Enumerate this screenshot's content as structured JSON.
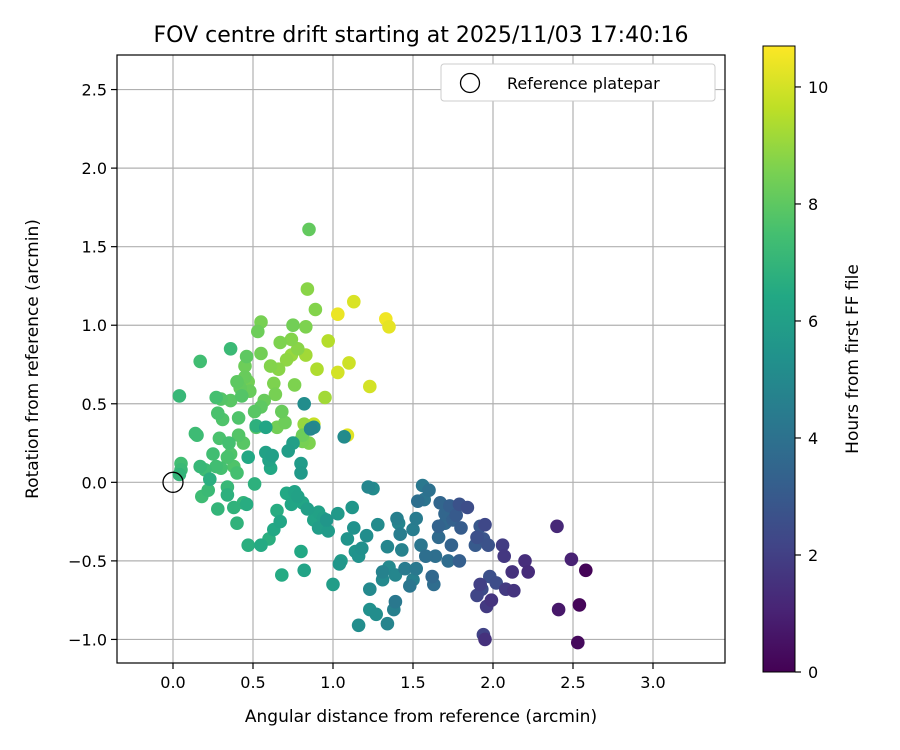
{
  "chart_data": {
    "type": "scatter",
    "title": "FOV centre drift starting at 2025/11/03 17:40:16",
    "xlabel": "Angular distance from reference (arcmin)",
    "ylabel": "Rotation from reference (arcmin)",
    "xlim": [
      -0.35,
      3.45
    ],
    "ylim": [
      -1.15,
      2.72
    ],
    "xticks": [
      0.0,
      0.5,
      1.0,
      1.5,
      2.0,
      2.5,
      3.0
    ],
    "yticks": [
      -1.0,
      -0.5,
      0.0,
      0.5,
      1.0,
      1.5,
      2.0,
      2.5
    ],
    "grid": true,
    "legend": {
      "location": "top-right",
      "entries": [
        "Reference platepar"
      ]
    },
    "reference_point": {
      "x": 0.0,
      "y": 0.0
    },
    "colorbar": {
      "label": "Hours from first FF file",
      "min": 0,
      "max": 10.7,
      "ticks": [
        0,
        2,
        4,
        6,
        8,
        10
      ],
      "colormap": "viridis"
    },
    "series": [
      {
        "points": [
          [
            2.58,
            -0.56,
            0.1
          ],
          [
            2.54,
            -0.78,
            0.15
          ],
          [
            2.53,
            -1.02,
            0.25
          ],
          [
            2.41,
            -0.81,
            0.7
          ],
          [
            2.49,
            -0.49,
            1.0
          ],
          [
            2.4,
            -0.28,
            1.2
          ],
          [
            2.22,
            -0.57,
            1.3
          ],
          [
            2.2,
            -0.5,
            1.4
          ],
          [
            2.12,
            -0.57,
            1.5
          ],
          [
            2.13,
            -0.69,
            1.6
          ],
          [
            2.08,
            -0.68,
            1.8
          ],
          [
            2.07,
            -0.47,
            1.7
          ],
          [
            2.06,
            -0.4,
            1.9
          ],
          [
            1.99,
            -0.75,
            1.6
          ],
          [
            1.96,
            -0.79,
            1.8
          ],
          [
            1.95,
            -1.0,
            1.5
          ],
          [
            1.94,
            -0.97,
            2.1
          ],
          [
            1.92,
            -0.65,
            2.0
          ],
          [
            1.9,
            -0.72,
            2.2
          ],
          [
            1.93,
            -0.68,
            2.4
          ],
          [
            1.95,
            -0.27,
            2.3
          ],
          [
            1.98,
            -0.6,
            2.6
          ],
          [
            2.02,
            -0.64,
            2.5
          ],
          [
            1.97,
            -0.4,
            2.7
          ],
          [
            1.94,
            -0.36,
            2.8
          ],
          [
            1.9,
            -0.35,
            2.6
          ],
          [
            1.92,
            -0.28,
            2.9
          ],
          [
            1.89,
            -0.4,
            3.0
          ],
          [
            1.84,
            -0.16,
            2.5
          ],
          [
            1.79,
            -0.14,
            2.7
          ],
          [
            1.8,
            -0.29,
            3.1
          ],
          [
            1.79,
            -0.5,
            3.2
          ],
          [
            1.77,
            -0.21,
            3.0
          ],
          [
            1.75,
            -0.24,
            3.3
          ],
          [
            1.74,
            -0.4,
            3.4
          ],
          [
            1.73,
            -0.15,
            3.2
          ],
          [
            1.7,
            -0.2,
            3.5
          ],
          [
            1.7,
            -0.26,
            3.6
          ],
          [
            1.72,
            -0.5,
            3.8
          ],
          [
            1.66,
            -0.28,
            3.4
          ],
          [
            1.67,
            -0.13,
            3.5
          ],
          [
            1.66,
            -0.35,
            3.7
          ],
          [
            1.64,
            -0.47,
            3.9
          ],
          [
            1.62,
            -0.6,
            3.6
          ],
          [
            1.63,
            -0.65,
            3.8
          ],
          [
            1.6,
            -0.05,
            4.0
          ],
          [
            1.58,
            -0.47,
            3.9
          ],
          [
            1.57,
            -0.11,
            4.1
          ],
          [
            1.55,
            -0.4,
            4.2
          ],
          [
            1.56,
            -0.02,
            4.3
          ],
          [
            1.53,
            -0.12,
            3.9
          ],
          [
            1.52,
            -0.23,
            4.4
          ],
          [
            1.5,
            -0.3,
            4.5
          ],
          [
            1.52,
            -0.55,
            4.3
          ],
          [
            1.5,
            -0.62,
            4.6
          ],
          [
            1.48,
            -0.66,
            4.2
          ],
          [
            1.45,
            -0.55,
            4.4
          ],
          [
            1.42,
            -0.33,
            4.5
          ],
          [
            1.43,
            -0.43,
            4.7
          ],
          [
            1.41,
            -0.26,
            4.8
          ],
          [
            1.4,
            -0.23,
            4.6
          ],
          [
            1.39,
            -0.59,
            4.9
          ],
          [
            1.39,
            -0.76,
            4.3
          ],
          [
            1.38,
            -0.81,
            4.6
          ],
          [
            1.35,
            -0.54,
            5.0
          ],
          [
            1.34,
            -0.41,
            4.9
          ],
          [
            1.34,
            -0.9,
            4.8
          ],
          [
            1.31,
            -0.57,
            4.7
          ],
          [
            1.31,
            -0.62,
            5.0
          ],
          [
            1.28,
            -0.27,
            5.1
          ],
          [
            1.27,
            -0.84,
            5.2
          ],
          [
            1.25,
            -0.04,
            5.1
          ],
          [
            1.23,
            -0.68,
            5.0
          ],
          [
            1.23,
            -0.81,
            5.3
          ],
          [
            1.22,
            -0.03,
            4.9
          ],
          [
            1.21,
            -0.34,
            5.2
          ],
          [
            1.18,
            -0.42,
            5.3
          ],
          [
            1.16,
            -0.47,
            5.4
          ],
          [
            1.14,
            -0.44,
            5.5
          ],
          [
            1.16,
            -0.91,
            5.2
          ],
          [
            1.13,
            -0.29,
            5.4
          ],
          [
            1.12,
            -0.16,
            5.6
          ],
          [
            1.09,
            -0.36,
            5.5
          ],
          [
            1.05,
            -0.5,
            5.8
          ],
          [
            1.04,
            -0.52,
            5.6
          ],
          [
            1.03,
            -0.2,
            5.7
          ],
          [
            1.0,
            -0.65,
            5.9
          ],
          [
            0.97,
            -0.31,
            5.8
          ],
          [
            0.96,
            -0.24,
            5.6
          ],
          [
            0.94,
            -0.23,
            6.0
          ],
          [
            0.91,
            -0.29,
            5.9
          ],
          [
            0.91,
            -0.19,
            6.1
          ],
          [
            0.88,
            -0.24,
            6.2
          ],
          [
            0.84,
            -0.17,
            6.0
          ],
          [
            0.81,
            -0.13,
            6.3
          ],
          [
            0.82,
            -0.56,
            6.2
          ],
          [
            0.8,
            -0.44,
            6.4
          ],
          [
            0.78,
            -0.09,
            6.1
          ],
          [
            0.76,
            -0.06,
            6.2
          ],
          [
            0.74,
            -0.14,
            6.3
          ],
          [
            0.71,
            -0.07,
            6.4
          ],
          [
            0.68,
            -0.59,
            6.5
          ],
          [
            0.67,
            -0.25,
            6.3
          ],
          [
            0.65,
            -0.18,
            6.6
          ],
          [
            0.63,
            -0.3,
            6.4
          ],
          [
            0.6,
            -0.36,
            6.7
          ],
          [
            0.55,
            -0.4,
            6.5
          ],
          [
            0.51,
            -0.01,
            6.8
          ],
          [
            0.47,
            -0.4,
            6.7
          ],
          [
            0.4,
            -0.26,
            6.9
          ],
          [
            0.46,
            -0.14,
            6.6
          ],
          [
            0.44,
            -0.13,
            7.0
          ],
          [
            0.38,
            -0.16,
            6.9
          ],
          [
            0.34,
            -0.08,
            6.8
          ],
          [
            0.34,
            -0.03,
            7.1
          ],
          [
            0.28,
            -0.17,
            7.0
          ],
          [
            0.23,
            0.02,
            6.7
          ],
          [
            0.22,
            -0.05,
            7.2
          ],
          [
            0.18,
            -0.09,
            7.3
          ],
          [
            0.27,
            0.1,
            7.4
          ],
          [
            0.3,
            0.09,
            7.5
          ],
          [
            0.34,
            0.16,
            7.6
          ],
          [
            0.38,
            0.1,
            7.7
          ],
          [
            0.4,
            0.06,
            7.5
          ],
          [
            0.25,
            0.18,
            7.4
          ],
          [
            0.2,
            0.08,
            7.3
          ],
          [
            0.17,
            0.1,
            7.1
          ],
          [
            0.05,
            0.08,
            7.2
          ],
          [
            0.04,
            0.05,
            7.0
          ],
          [
            0.05,
            0.12,
            7.4
          ],
          [
            0.15,
            0.3,
            7.3
          ],
          [
            0.29,
            0.28,
            7.6
          ],
          [
            0.35,
            0.25,
            7.5
          ],
          [
            0.41,
            0.3,
            7.8
          ],
          [
            0.44,
            0.25,
            7.9
          ],
          [
            0.36,
            0.18,
            7.7
          ],
          [
            0.47,
            0.16,
            6.4
          ],
          [
            0.52,
            0.36,
            6.8
          ],
          [
            0.58,
            0.19,
            6.1
          ],
          [
            0.6,
            0.14,
            6.2
          ],
          [
            0.61,
            0.09,
            6.4
          ],
          [
            0.62,
            0.17,
            6.0
          ],
          [
            0.58,
            0.35,
            6.3
          ],
          [
            0.72,
            0.2,
            5.9
          ],
          [
            0.75,
            0.25,
            6.0
          ],
          [
            0.8,
            0.12,
            5.8
          ],
          [
            0.8,
            0.06,
            5.7
          ],
          [
            0.82,
            0.5,
            5.2
          ],
          [
            0.86,
            0.34,
            4.9
          ],
          [
            0.88,
            0.35,
            5.1
          ],
          [
            0.81,
            0.26,
            8.5
          ],
          [
            0.85,
            0.25,
            8.6
          ],
          [
            0.82,
            0.37,
            9.0
          ],
          [
            0.88,
            0.37,
            9.8
          ],
          [
            1.07,
            0.29,
            5.1
          ],
          [
            1.09,
            0.3,
            10.2
          ],
          [
            0.04,
            0.55,
            7.1
          ],
          [
            0.14,
            0.31,
            7.3
          ],
          [
            0.17,
            0.77,
            7.4
          ],
          [
            0.27,
            0.54,
            7.5
          ],
          [
            0.3,
            0.53,
            7.8
          ],
          [
            0.28,
            0.44,
            7.6
          ],
          [
            0.31,
            0.4,
            7.7
          ],
          [
            0.36,
            0.52,
            7.9
          ],
          [
            0.36,
            0.85,
            7.2
          ],
          [
            0.4,
            0.64,
            8.0
          ],
          [
            0.41,
            0.41,
            7.7
          ],
          [
            0.42,
            0.6,
            8.1
          ],
          [
            0.43,
            0.55,
            7.8
          ],
          [
            0.45,
            0.67,
            8.2
          ],
          [
            0.45,
            0.74,
            8.3
          ],
          [
            0.46,
            0.8,
            8.0
          ],
          [
            0.47,
            0.64,
            8.4
          ],
          [
            0.48,
            0.58,
            8.2
          ],
          [
            0.51,
            0.45,
            7.9
          ],
          [
            0.53,
            0.96,
            8.3
          ],
          [
            0.52,
            0.35,
            7.8
          ],
          [
            0.55,
            0.48,
            8.0
          ],
          [
            0.57,
            0.52,
            8.2
          ],
          [
            0.55,
            1.02,
            8.5
          ],
          [
            0.55,
            0.82,
            8.4
          ],
          [
            0.61,
            0.74,
            8.7
          ],
          [
            0.63,
            0.63,
            8.6
          ],
          [
            0.64,
            0.56,
            8.5
          ],
          [
            0.65,
            0.35,
            8.4
          ],
          [
            0.66,
            0.72,
            8.8
          ],
          [
            0.67,
            0.89,
            8.6
          ],
          [
            0.68,
            0.45,
            8.2
          ],
          [
            0.7,
            0.38,
            8.3
          ],
          [
            0.71,
            0.78,
            8.9
          ],
          [
            0.74,
            0.81,
            9.0
          ],
          [
            0.74,
            0.91,
            8.7
          ],
          [
            0.75,
            1.0,
            8.4
          ],
          [
            0.76,
            0.62,
            8.6
          ],
          [
            0.78,
            0.85,
            8.8
          ],
          [
            0.8,
            0.27,
            8.5
          ],
          [
            0.81,
            0.3,
            8.3
          ],
          [
            0.83,
            0.81,
            9.2
          ],
          [
            0.83,
            0.99,
            8.6
          ],
          [
            0.84,
            1.23,
            8.8
          ],
          [
            0.85,
            1.61,
            8.1
          ],
          [
            0.89,
            1.1,
            8.7
          ],
          [
            0.9,
            0.72,
            9.4
          ],
          [
            0.95,
            0.54,
            9.2
          ],
          [
            0.97,
            0.9,
            9.5
          ],
          [
            1.03,
            1.07,
            10.4
          ],
          [
            1.03,
            0.7,
            10.0
          ],
          [
            1.1,
            0.76,
            9.9
          ],
          [
            1.13,
            1.15,
            10.1
          ],
          [
            1.23,
            0.61,
            10.0
          ],
          [
            1.33,
            1.04,
            10.5
          ],
          [
            1.35,
            0.99,
            10.3
          ]
        ]
      }
    ]
  }
}
